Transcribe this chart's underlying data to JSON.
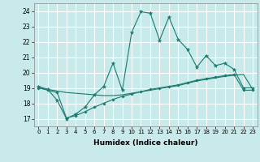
{
  "title": "",
  "xlabel": "Humidex (Indice chaleur)",
  "bg_color": "#c8eaea",
  "grid_color": "#ffffff",
  "line_color": "#1a7a6e",
  "xlim": [
    -0.5,
    23.5
  ],
  "ylim": [
    16.5,
    24.5
  ],
  "yticks": [
    17,
    18,
    19,
    20,
    21,
    22,
    23,
    24
  ],
  "xticks": [
    0,
    1,
    2,
    3,
    4,
    5,
    6,
    7,
    8,
    9,
    10,
    11,
    12,
    13,
    14,
    15,
    16,
    17,
    18,
    19,
    20,
    21,
    22,
    23
  ],
  "line1_x": [
    0,
    1,
    2,
    3,
    4,
    5,
    6,
    7,
    8,
    9,
    10,
    11,
    12,
    13,
    14,
    15,
    16,
    17,
    18,
    19,
    20,
    21,
    22,
    23
  ],
  "line1_y": [
    19.1,
    18.9,
    18.2,
    17.0,
    17.3,
    17.75,
    18.55,
    19.1,
    20.6,
    18.85,
    22.6,
    23.95,
    23.85,
    22.1,
    23.6,
    22.15,
    21.5,
    20.35,
    21.1,
    20.45,
    20.6,
    20.2,
    19.0,
    19.0
  ],
  "line2_x": [
    0,
    1,
    2,
    3,
    4,
    5,
    6,
    7,
    8,
    9,
    10,
    11,
    12,
    13,
    14,
    15,
    16,
    17,
    18,
    19,
    20,
    21,
    22,
    23
  ],
  "line2_y": [
    19.0,
    18.9,
    18.8,
    18.7,
    18.65,
    18.6,
    18.55,
    18.5,
    18.5,
    18.55,
    18.65,
    18.75,
    18.85,
    18.95,
    19.05,
    19.15,
    19.3,
    19.45,
    19.55,
    19.65,
    19.75,
    19.82,
    19.88,
    18.9
  ],
  "line3_x": [
    0,
    1,
    2,
    3,
    4,
    5,
    6,
    7,
    8,
    9,
    10,
    11,
    12,
    13,
    14,
    15,
    16,
    17,
    18,
    19,
    20,
    21,
    22,
    23
  ],
  "line3_y": [
    19.0,
    18.85,
    18.7,
    17.05,
    17.2,
    17.45,
    17.75,
    18.0,
    18.25,
    18.45,
    18.6,
    18.75,
    18.9,
    19.0,
    19.1,
    19.2,
    19.35,
    19.5,
    19.6,
    19.7,
    19.8,
    19.88,
    18.85,
    18.85
  ]
}
